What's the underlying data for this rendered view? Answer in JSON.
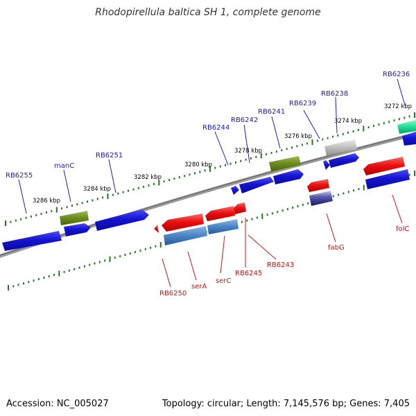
{
  "title": "Rhodopirellula baltica SH 1, complete genome",
  "footer": {
    "accession": "Accession: NC_005027",
    "summary": "Topology: circular; Length: 7,145,576 bp; Genes: 7,405"
  },
  "scale_labels": [
    "3272 kbp",
    "3274 kbp",
    "3276 kbp",
    "3278 kbp",
    "3280 kbp",
    "3282 kbp",
    "3284 kbp",
    "3286 kbp"
  ],
  "forward_labels": [
    "RB6236",
    "RB6238",
    "RB6239",
    "RB6241",
    "RB6242",
    "RB6244",
    "RB6251",
    "manC",
    "RB6255"
  ],
  "reverse_labels": [
    "folC",
    "fabG",
    "RB6243",
    "RB6245",
    "serC",
    "serA",
    "RB6250"
  ],
  "colors": {
    "forward_label": "#1a1acc",
    "reverse_label": "#cc1111",
    "backbone": "#888888",
    "tick": "#227722",
    "blue_gene": "#1414d2",
    "red_gene": "#ee1111",
    "olive_gene": "#6b8a1e",
    "gray_gene": "#b8b8b8",
    "teal_gene": "#22dd99",
    "steel_gene": "#4a84c6",
    "navy_gene": "#262680"
  }
}
